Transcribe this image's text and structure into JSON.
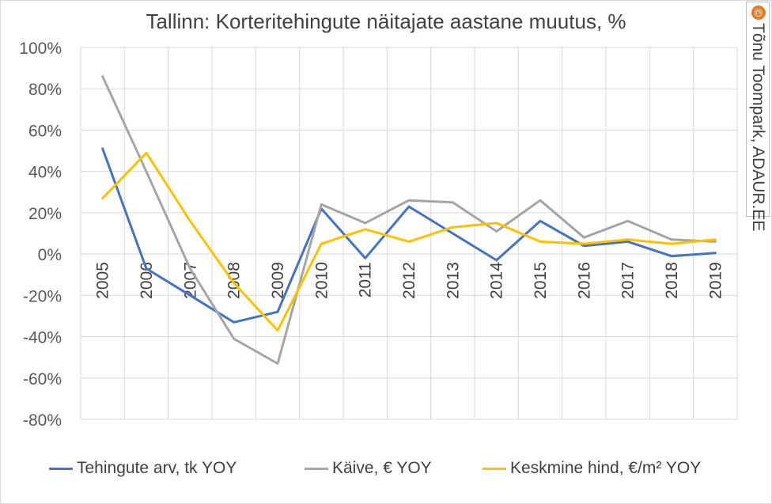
{
  "chart_data": {
    "type": "line",
    "title": "Tallinn: Korteritehingute näitajate aastane muutus, %",
    "categories": [
      "2005",
      "2006",
      "2007",
      "2008",
      "2009",
      "2010",
      "2011",
      "2012",
      "2013",
      "2014",
      "2015",
      "2016",
      "2017",
      "2018",
      "2019"
    ],
    "ylim": [
      -80,
      100
    ],
    "yticks": [
      100,
      80,
      60,
      40,
      20,
      0,
      -20,
      -40,
      -60,
      -80
    ],
    "ytick_labels": [
      "100%",
      "80%",
      "60%",
      "40%",
      "20%",
      "0%",
      "-20%",
      "-40%",
      "-60%",
      "-80%"
    ],
    "grid": "horizontal and vertical",
    "legend_position": "bottom",
    "series": [
      {
        "name": "Tehingute arv, tk YOY",
        "color": "#4472c4",
        "values": [
          51,
          -7,
          -20,
          -33,
          -28,
          22,
          -2,
          23,
          10,
          -3,
          16,
          4,
          6,
          -1,
          0.5
        ]
      },
      {
        "name": "Käive, € YOY",
        "color": "#a5a5a5",
        "values": [
          86,
          40,
          -7,
          -41,
          -53,
          24,
          15,
          26,
          25,
          11,
          26,
          8,
          16,
          7,
          6
        ]
      },
      {
        "name": "Keskmine hind, €/m² YOY",
        "color": "#ffc000",
        "values": [
          27,
          49,
          16,
          -14,
          -37,
          5,
          12,
          6,
          13,
          15,
          6,
          5,
          7,
          5,
          7
        ]
      }
    ]
  },
  "watermark": {
    "symbol": "©",
    "text": "Tõnu Toompark, ADAUR.EE",
    "icon_color": "#e07b2a"
  }
}
